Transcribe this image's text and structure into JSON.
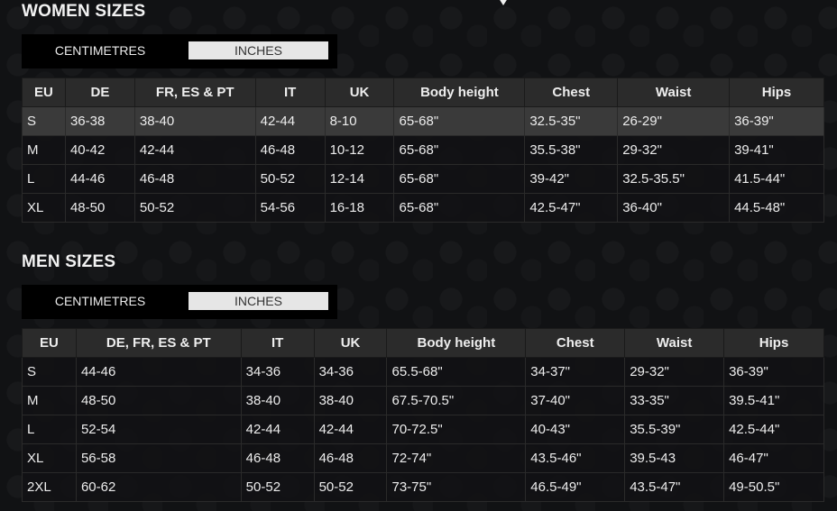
{
  "women": {
    "title": "WOMEN SIZES",
    "toggle": {
      "cm": "CENTIMETRES",
      "in": "INCHES"
    },
    "headers": [
      "EU",
      "DE",
      "FR, ES & PT",
      "IT",
      "UK",
      "Body height",
      "Chest",
      "Waist",
      "Hips"
    ],
    "rows": [
      [
        "S",
        "36-38",
        "38-40",
        "42-44",
        "8-10",
        "65-68\"",
        "32.5-35\"",
        "26-29\"",
        "36-39\""
      ],
      [
        "M",
        "40-42",
        "42-44",
        "46-48",
        "10-12",
        "65-68\"",
        "35.5-38\"",
        "29-32\"",
        "39-41\""
      ],
      [
        "L",
        "44-46",
        "46-48",
        "50-52",
        "12-14",
        "65-68\"",
        "39-42\"",
        "32.5-35.5\"",
        "41.5-44\""
      ],
      [
        "XL",
        "48-50",
        "50-52",
        "54-56",
        "16-18",
        "65-68\"",
        "42.5-47\"",
        "36-40\"",
        "44.5-48\""
      ]
    ]
  },
  "men": {
    "title": "MEN SIZES",
    "toggle": {
      "cm": "CENTIMETRES",
      "in": "INCHES"
    },
    "headers": [
      "EU",
      "DE, FR, ES & PT",
      "IT",
      "UK",
      "Body height",
      "Chest",
      "Waist",
      "Hips"
    ],
    "rows": [
      [
        "S",
        "44-46",
        "34-36",
        "34-36",
        "65.5-68\"",
        "34-37\"",
        "29-32\"",
        "36-39\""
      ],
      [
        "M",
        "48-50",
        "38-40",
        "38-40",
        "67.5-70.5\"",
        "37-40\"",
        "33-35\"",
        "39.5-41\""
      ],
      [
        "L",
        "52-54",
        "42-44",
        "42-44",
        "70-72.5\"",
        "40-43\"",
        "35.5-39\"",
        "42.5-44\""
      ],
      [
        "XL",
        "56-58",
        "46-48",
        "46-48",
        "72-74\"",
        "43.5-46\"",
        "39.5-43",
        "46-47\""
      ],
      [
        "2XL",
        "60-62",
        "50-52",
        "50-52",
        "73-75\"",
        "46.5-49\"",
        "43.5-47\"",
        "49-50.5\""
      ]
    ]
  }
}
